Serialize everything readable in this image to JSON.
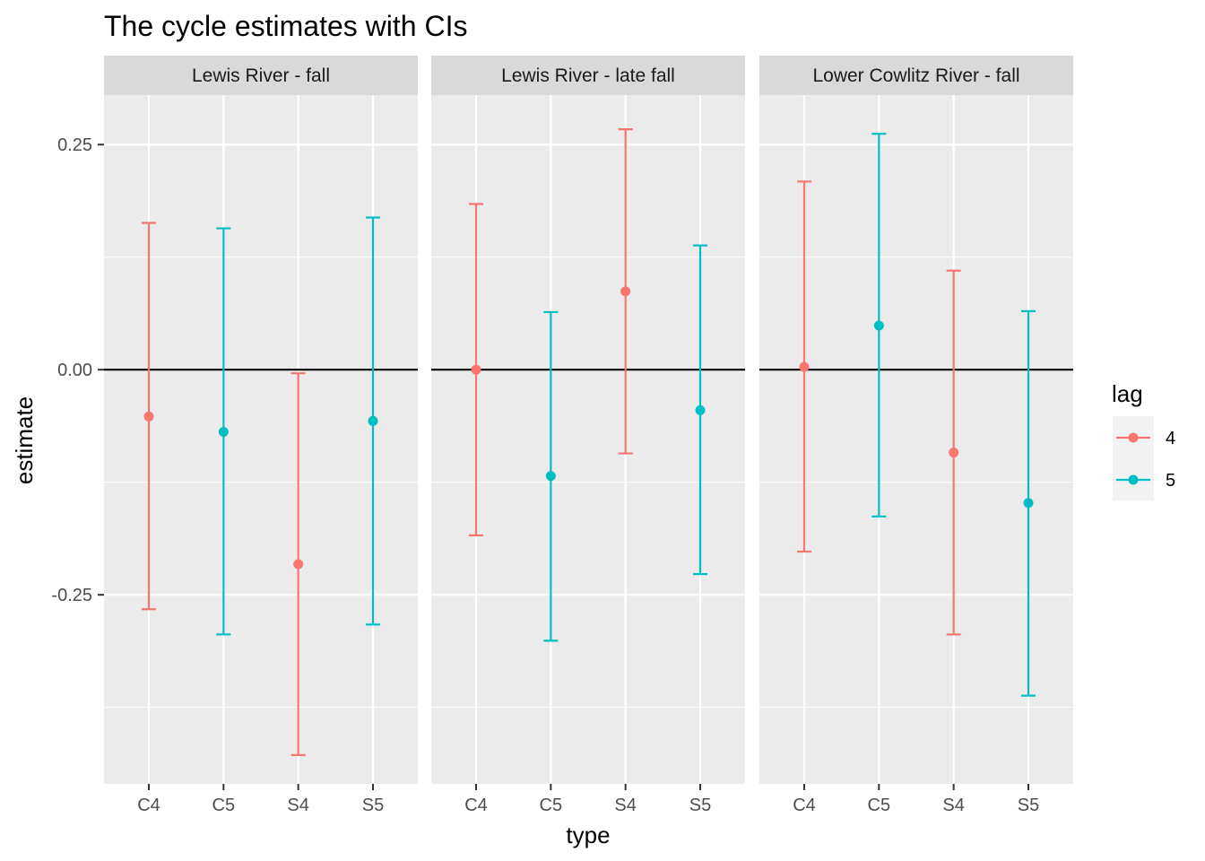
{
  "chart_data": {
    "type": "errorbar-point",
    "title": "The cycle estimates with CIs",
    "xlabel": "type",
    "ylabel": "estimate",
    "categories": [
      "C4",
      "C5",
      "S4",
      "S5"
    ],
    "ylim": [
      -0.46,
      0.305
    ],
    "yticks": [
      0.25,
      0.0,
      -0.25
    ],
    "ytick_labels": [
      "0.25",
      "0.00",
      "-0.25"
    ],
    "hline": 0.0,
    "grid": true,
    "legend": {
      "title": "lag",
      "placement": "right",
      "entries": [
        {
          "label": "4",
          "color": "#F8766D"
        },
        {
          "label": "5",
          "color": "#00BFC4"
        }
      ]
    },
    "panels": [
      {
        "label": "Lewis River - fall",
        "points": [
          {
            "type": "C4",
            "lag": "4",
            "estimate": -0.052,
            "lower": -0.266,
            "upper": 0.163
          },
          {
            "type": "C5",
            "lag": "5",
            "estimate": -0.069,
            "lower": -0.294,
            "upper": 0.157
          },
          {
            "type": "S4",
            "lag": "4",
            "estimate": -0.216,
            "lower": -0.428,
            "upper": -0.004
          },
          {
            "type": "S5",
            "lag": "5",
            "estimate": -0.057,
            "lower": -0.283,
            "upper": 0.169
          }
        ]
      },
      {
        "label": "Lewis River - late fall",
        "points": [
          {
            "type": "C4",
            "lag": "4",
            "estimate": 0.0,
            "lower": -0.184,
            "upper": 0.184
          },
          {
            "type": "C5",
            "lag": "5",
            "estimate": -0.118,
            "lower": -0.301,
            "upper": 0.064
          },
          {
            "type": "S4",
            "lag": "4",
            "estimate": 0.087,
            "lower": -0.093,
            "upper": 0.267
          },
          {
            "type": "S5",
            "lag": "5",
            "estimate": -0.045,
            "lower": -0.227,
            "upper": 0.138
          }
        ]
      },
      {
        "label": "Lower Cowlitz River - fall",
        "points": [
          {
            "type": "C4",
            "lag": "4",
            "estimate": 0.003,
            "lower": -0.202,
            "upper": 0.209
          },
          {
            "type": "C5",
            "lag": "5",
            "estimate": 0.049,
            "lower": -0.163,
            "upper": 0.262
          },
          {
            "type": "S4",
            "lag": "4",
            "estimate": -0.092,
            "lower": -0.294,
            "upper": 0.11
          },
          {
            "type": "S5",
            "lag": "5",
            "estimate": -0.148,
            "lower": -0.362,
            "upper": 0.065
          }
        ]
      }
    ]
  }
}
